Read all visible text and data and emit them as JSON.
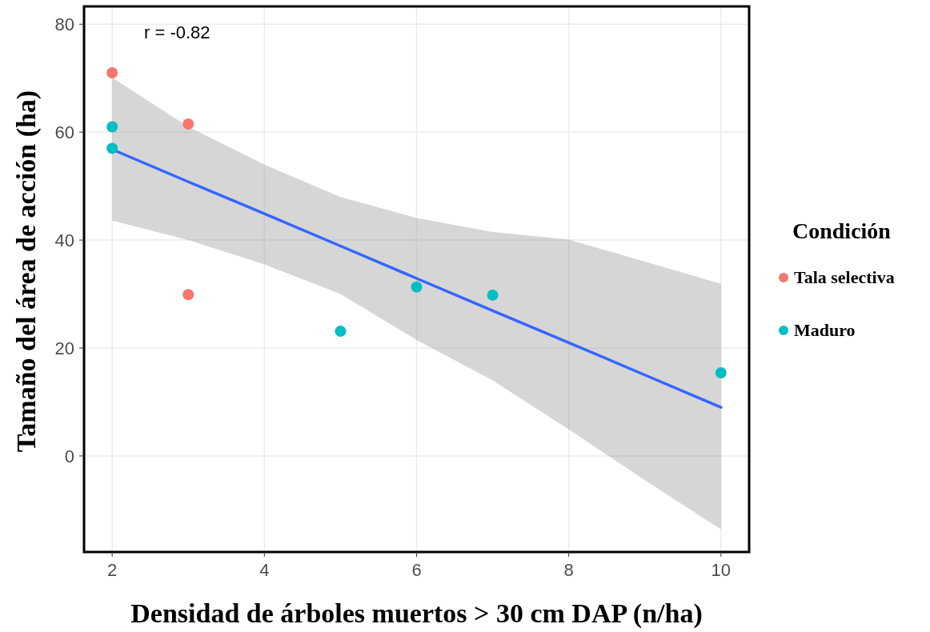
{
  "chart_data": {
    "type": "scatter",
    "xlabel": "Densidad de árboles muertos > 30 cm DAP (n/ha)",
    "ylabel": "Tamaño del área de acción (ha)",
    "legend_title": "Condición",
    "legend": "right",
    "grid": true,
    "marker": "circle",
    "xlim": [
      1.63,
      10.37
    ],
    "xticks": [
      2,
      4,
      6,
      8,
      10
    ],
    "ylim": [
      -17.8,
      83.3
    ],
    "yticks": [
      0,
      20,
      40,
      60,
      80
    ],
    "annotations": [
      "r = -0.82"
    ],
    "series": [
      {
        "type": "line",
        "marker": "none",
        "color": "#3366ff",
        "x": [
          2,
          3,
          4,
          5,
          6,
          7,
          8,
          9,
          10
        ],
        "values": [
          56.8,
          50.8,
          44.9,
          38.9,
          32.9,
          26.9,
          21.0,
          15.0,
          9.0
        ],
        "lower": [
          43.6,
          40,
          35.5,
          30,
          21.5,
          14,
          4.9,
          -4.5,
          -13.6
        ],
        "upper": [
          70.1,
          61,
          54,
          48,
          44.1,
          41.5,
          40.1,
          36,
          31.9
        ]
      },
      {
        "name": "Tala selectiva",
        "color": "#f8766d",
        "x": [
          2,
          3,
          3
        ],
        "values": [
          71,
          61.5,
          29.9
        ]
      },
      {
        "name": "Maduro",
        "color": "#00bfc4",
        "x": [
          2,
          2,
          5,
          6,
          7,
          10
        ],
        "values": [
          61,
          57,
          23.1,
          31.3,
          29.8,
          15.4
        ]
      }
    ]
  }
}
